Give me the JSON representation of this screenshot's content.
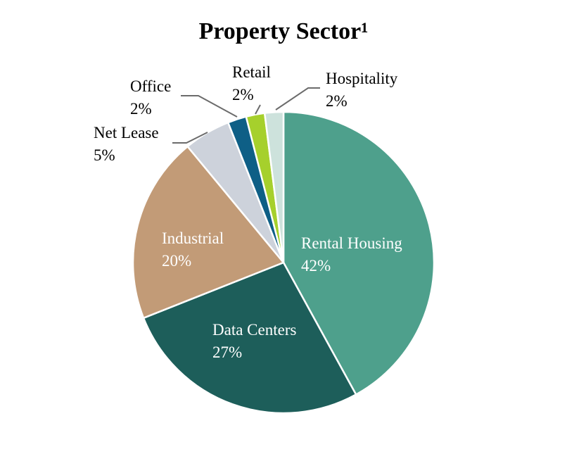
{
  "chart_data": {
    "type": "pie",
    "title": "Property Sector¹",
    "slices": [
      {
        "name": "Rental Housing",
        "value": 42,
        "label": "42%",
        "color": "#4ea08c",
        "label_color": "#ffffff"
      },
      {
        "name": "Data Centers",
        "value": 27,
        "label": "27%",
        "color": "#1d5e5a",
        "label_color": "#ffffff"
      },
      {
        "name": "Industrial",
        "value": 20,
        "label": "20%",
        "color": "#c29b77",
        "label_color": "#ffffff"
      },
      {
        "name": "Net Lease",
        "value": 5,
        "label": "5%",
        "color": "#cdd2db",
        "label_color": "#000000"
      },
      {
        "name": "Office",
        "value": 2,
        "label": "2%",
        "color": "#0e5f86",
        "label_color": "#000000"
      },
      {
        "name": "Retail",
        "value": 2,
        "label": "2%",
        "color": "#a6d02c",
        "label_color": "#000000"
      },
      {
        "name": "Hospitality",
        "value": 2,
        "label": "2%",
        "color": "#cde2dc",
        "label_color": "#000000"
      }
    ]
  }
}
